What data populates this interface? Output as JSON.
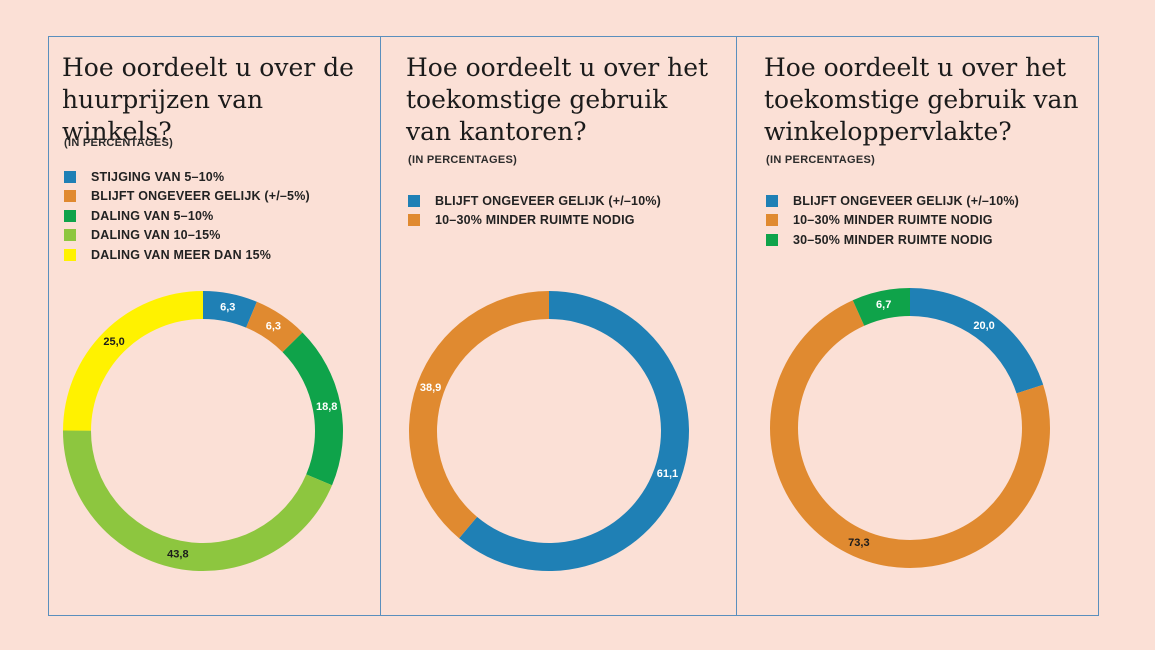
{
  "charts": [
    {
      "title_lines": [
        "Hoe oordeelt u over de",
        "huurprijzen van winkels?"
      ],
      "subtitle": "(IN PERCENTAGES)",
      "legend": [
        {
          "label": "STIJGING VAN 5–10%",
          "color": "#1f80b5"
        },
        {
          "label": "BLIJFT ONGEVEER GELIJK (+/–5%)",
          "color": "#e08a30"
        },
        {
          "label": "DALING VAN 5–10%",
          "color": "#0fa34a"
        },
        {
          "label": "DALING VAN 10–15%",
          "color": "#8dc63f"
        },
        {
          "label": "DALING VAN MEER DAN 15%",
          "color": "#fff200"
        }
      ]
    },
    {
      "title_lines": [
        "Hoe oordeelt u over het",
        "toekomstige gebruik",
        "van kantoren?"
      ],
      "subtitle": "(IN PERCENTAGES)",
      "legend": [
        {
          "label": "BLIJFT ONGEVEER GELIJK (+/–10%)",
          "color": "#1f80b5"
        },
        {
          "label": "10–30% MINDER RUIMTE NODIG",
          "color": "#e08a30"
        }
      ]
    },
    {
      "title_lines": [
        "Hoe oordeelt u over het",
        "toekomstige gebruik van",
        "winkeloppervlakte?"
      ],
      "subtitle": "(IN PERCENTAGES)",
      "legend": [
        {
          "label": "BLIJFT ONGEVEER GELIJK (+/–10%)",
          "color": "#1f80b5"
        },
        {
          "label": "10–30% MINDER RUIMTE NODIG",
          "color": "#e08a30"
        },
        {
          "label": "30–50% MINDER RUIMTE NODIG",
          "color": "#0fa34a"
        }
      ]
    }
  ],
  "chart_data": [
    {
      "type": "pie",
      "title": "Hoe oordeelt u over de huurprijzen van winkels?",
      "subtitle": "(IN PERCENTAGES)",
      "categories": [
        "STIJGING VAN 5–10%",
        "BLIJFT ONGEVEER GELIJK (+/–5%)",
        "DALING VAN 5–10%",
        "DALING VAN 10–15%",
        "DALING VAN MEER DAN 15%"
      ],
      "values": [
        6.3,
        6.3,
        18.8,
        43.8,
        25.0
      ],
      "labels": [
        "6,3",
        "6,3",
        "18,8",
        "43,8",
        "25,0"
      ],
      "colors": [
        "#1f80b5",
        "#e08a30",
        "#0fa34a",
        "#8dc63f",
        "#fff200"
      ],
      "label_colors": [
        "#ffffff",
        "#ffffff",
        "#ffffff",
        "#1b1b1b",
        "#1b1b1b"
      ],
      "legend_position": "top-left"
    },
    {
      "type": "pie",
      "title": "Hoe oordeelt u over het toekomstige gebruik van kantoren?",
      "subtitle": "(IN PERCENTAGES)",
      "categories": [
        "BLIJFT ONGEVEER GELIJK (+/–10%)",
        "10–30% MINDER RUIMTE NODIG"
      ],
      "values": [
        61.1,
        38.9
      ],
      "labels": [
        "61,1",
        "38,9"
      ],
      "colors": [
        "#1f80b5",
        "#e08a30"
      ],
      "label_colors": [
        "#ffffff",
        "#ffffff"
      ],
      "legend_position": "top-left"
    },
    {
      "type": "pie",
      "title": "Hoe oordeelt u over het toekomstige gebruik van winkeloppervlakte?",
      "subtitle": "(IN PERCENTAGES)",
      "categories": [
        "BLIJFT ONGEVEER GELIJK (+/–10%)",
        "10–30% MINDER RUIMTE NODIG",
        "30–50% MINDER RUIMTE NODIG"
      ],
      "values": [
        20.0,
        73.3,
        6.7
      ],
      "labels": [
        "20,0",
        "73,3",
        "6,7"
      ],
      "colors": [
        "#1f80b5",
        "#e08a30",
        "#0fa34a"
      ],
      "label_colors": [
        "#ffffff",
        "#1b1b1b",
        "#ffffff"
      ],
      "legend_position": "top-left"
    }
  ]
}
